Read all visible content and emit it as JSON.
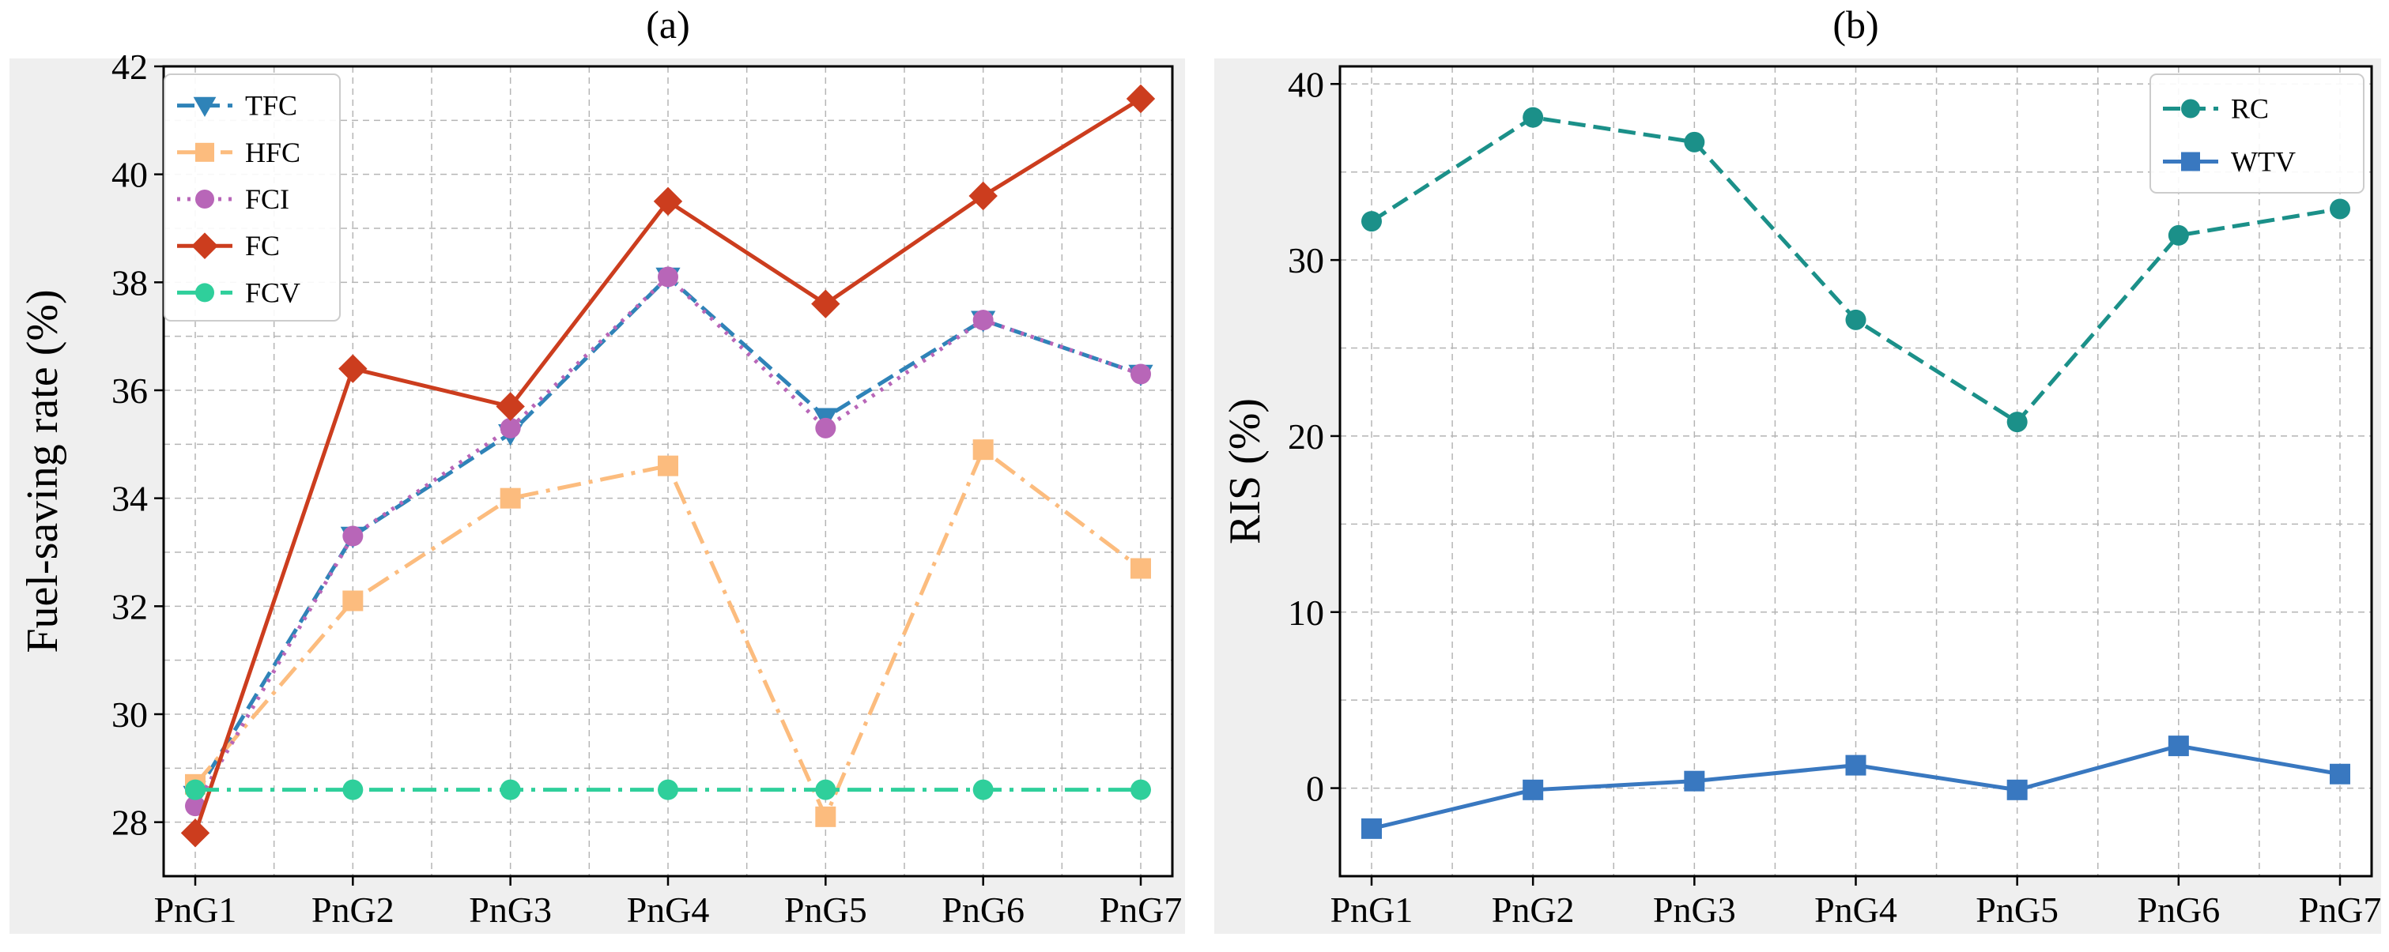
{
  "chart_data": [
    {
      "type": "line",
      "title": "(a)",
      "xlabel": "",
      "ylabel": "Fuel-saving rate (%)",
      "categories": [
        "PnG1",
        "PnG2",
        "PnG3",
        "PnG4",
        "PnG5",
        "PnG6",
        "PnG7"
      ],
      "ylim": [
        27,
        42
      ],
      "yticks": [
        28,
        30,
        32,
        34,
        36,
        38,
        40,
        42
      ],
      "grid": true,
      "legend_position": "top-left",
      "series": [
        {
          "name": "TFC",
          "values": [
            28.5,
            33.3,
            35.2,
            38.1,
            35.5,
            37.3,
            36.3
          ],
          "color": "#2f83b8",
          "marker": "triangle-down",
          "dash": "dashed"
        },
        {
          "name": "HFC",
          "values": [
            28.7,
            32.1,
            34.0,
            34.6,
            28.1,
            34.9,
            32.7
          ],
          "color": "#fcbc7e",
          "marker": "square",
          "dash": "dashdot"
        },
        {
          "name": "FCI",
          "values": [
            28.3,
            33.3,
            35.3,
            38.1,
            35.3,
            37.3,
            36.3
          ],
          "color": "#b866b8",
          "marker": "circle",
          "dash": "dotted"
        },
        {
          "name": "FC",
          "values": [
            27.8,
            36.4,
            35.7,
            39.5,
            37.6,
            39.6,
            41.4
          ],
          "color": "#cc3d1e",
          "marker": "diamond",
          "dash": "solid"
        },
        {
          "name": "FCV",
          "values": [
            28.6,
            28.6,
            28.6,
            28.6,
            28.6,
            28.6,
            28.6
          ],
          "color": "#2fcf9b",
          "marker": "circle",
          "dash": "dashdot"
        }
      ]
    },
    {
      "type": "line",
      "title": "(b)",
      "xlabel": "",
      "ylabel": "RIS (%)",
      "categories": [
        "PnG1",
        "PnG2",
        "PnG3",
        "PnG4",
        "PnG5",
        "PnG6",
        "PnG7"
      ],
      "ylim": [
        -5,
        41
      ],
      "yticks": [
        0,
        10,
        20,
        30,
        40
      ],
      "grid": true,
      "legend_position": "top-right",
      "series": [
        {
          "name": "RC",
          "values": [
            32.2,
            38.1,
            36.7,
            26.6,
            20.8,
            31.4,
            32.9
          ],
          "color": "#1b9089",
          "marker": "circle",
          "dash": "dashed"
        },
        {
          "name": "WTV",
          "values": [
            -2.3,
            -0.1,
            0.4,
            1.3,
            -0.1,
            2.4,
            0.8
          ],
          "color": "#3978c0",
          "marker": "square",
          "dash": "solid"
        }
      ]
    }
  ]
}
